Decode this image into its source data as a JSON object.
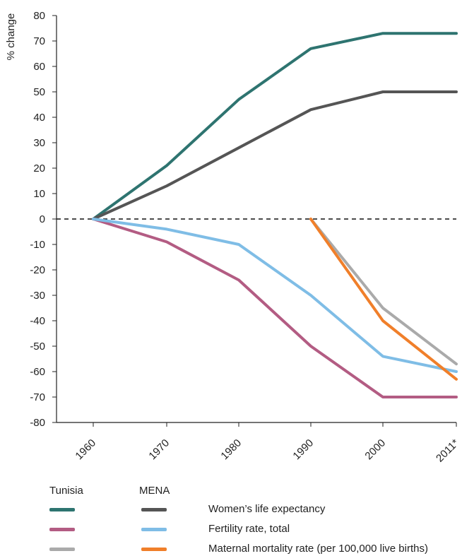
{
  "chart_data": {
    "type": "line",
    "ylabel": "% change",
    "ylim": [
      -80,
      80
    ],
    "yticks": [
      80,
      70,
      60,
      50,
      40,
      30,
      20,
      10,
      0,
      -10,
      -20,
      -30,
      -40,
      -50,
      -60,
      -70,
      -80
    ],
    "x": [
      "1960",
      "1970",
      "1980",
      "1990",
      "2000",
      "2011*"
    ],
    "zero_line": "dashed",
    "series": [
      {
        "key": "tun_life",
        "color": "#2e7470",
        "values": [
          0,
          21,
          47,
          67,
          73,
          73
        ]
      },
      {
        "key": "mena_life",
        "color": "#555555",
        "values": [
          0,
          13,
          28,
          43,
          50,
          50
        ]
      },
      {
        "key": "tun_fert",
        "color": "#b35c83",
        "values": [
          0,
          -9,
          -24,
          -50,
          -70,
          -70
        ]
      },
      {
        "key": "mena_fert",
        "color": "#7fbde6",
        "values": [
          0,
          -4,
          -10,
          -30,
          -54,
          -60
        ]
      },
      {
        "key": "tun_mmr",
        "color": "#aaaaaa",
        "values": [
          null,
          null,
          null,
          0,
          -35,
          -57
        ]
      },
      {
        "key": "mena_mmr",
        "color": "#f07f2a",
        "values": [
          null,
          null,
          null,
          0,
          -40,
          -63
        ]
      }
    ]
  },
  "legend": {
    "col_headers": [
      "Tunisia",
      "MENA"
    ],
    "rows": [
      {
        "label": "Women’s life expectancy",
        "tunisia_color": "#2e7470",
        "mena_color": "#555555"
      },
      {
        "label": "Fertility rate, total",
        "tunisia_color": "#b35c83",
        "mena_color": "#7fbde6"
      },
      {
        "label": "Maternal mortality rate (per 100,000 live births)",
        "tunisia_color": "#aaaaaa",
        "mena_color": "#f07f2a"
      }
    ]
  }
}
